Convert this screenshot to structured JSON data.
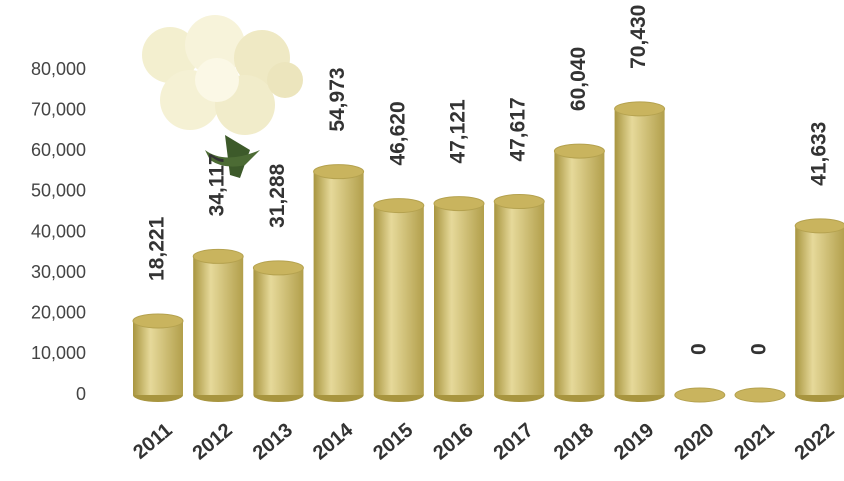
{
  "chart_data": {
    "type": "bar",
    "categories": [
      "2011",
      "2012",
      "2013",
      "2014",
      "2015",
      "2016",
      "2017",
      "2018",
      "2019",
      "2020",
      "2021",
      "2022"
    ],
    "values": [
      18221,
      34117,
      31288,
      54973,
      46620,
      47121,
      47617,
      60040,
      70430,
      0,
      0,
      41633
    ],
    "value_labels": [
      "18,221",
      "34,117",
      "31,288",
      "54,973",
      "46,620",
      "47,121",
      "47,617",
      "60,040",
      "70,430",
      "0",
      "0",
      "41,633"
    ],
    "color": "#c9b45e",
    "ylim": [
      0,
      80000
    ],
    "yticks": [
      0,
      {
        "value": 10000,
        "label": "10,000"
      },
      {
        "value": 20000,
        "label": "20,000"
      },
      {
        "value": 30000,
        "label": "30,000"
      },
      {
        "value": 40000,
        "label": "40,000"
      },
      {
        "value": 50000,
        "label": "50,000"
      },
      {
        "value": 60000,
        "label": "60,000"
      },
      {
        "value": 70000,
        "label": "70,000"
      },
      {
        "value": 80000,
        "label": "80,000"
      }
    ],
    "grid": false
  }
}
